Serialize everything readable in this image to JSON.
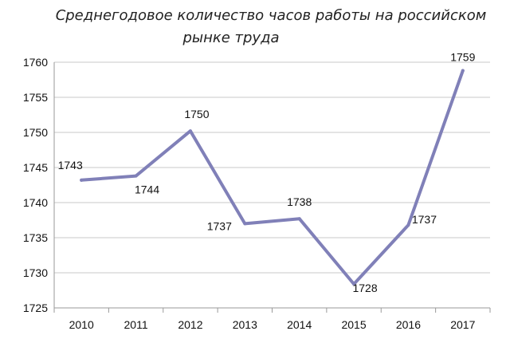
{
  "chart_data": {
    "type": "line",
    "title_line1": "Среднегодовое количество часов работы на российском",
    "title_line2": "рынке труда",
    "categories": [
      "2010",
      "2011",
      "2012",
      "2013",
      "2014",
      "2015",
      "2016",
      "2017"
    ],
    "values": [
      1743.2,
      1743.8,
      1750.2,
      1737.0,
      1737.7,
      1728.4,
      1736.8,
      1758.8
    ],
    "data_labels": [
      "1743",
      "1744",
      "1750",
      "1737",
      "1738",
      "1728",
      "1737",
      "1759"
    ],
    "ylim": [
      1725,
      1760
    ],
    "yticks": [
      "1725",
      "1730",
      "1735",
      "1740",
      "1745",
      "1750",
      "1755",
      "1760"
    ],
    "grid": true,
    "line_color": "#8080b8",
    "grid_color": "#c8c8c8"
  }
}
